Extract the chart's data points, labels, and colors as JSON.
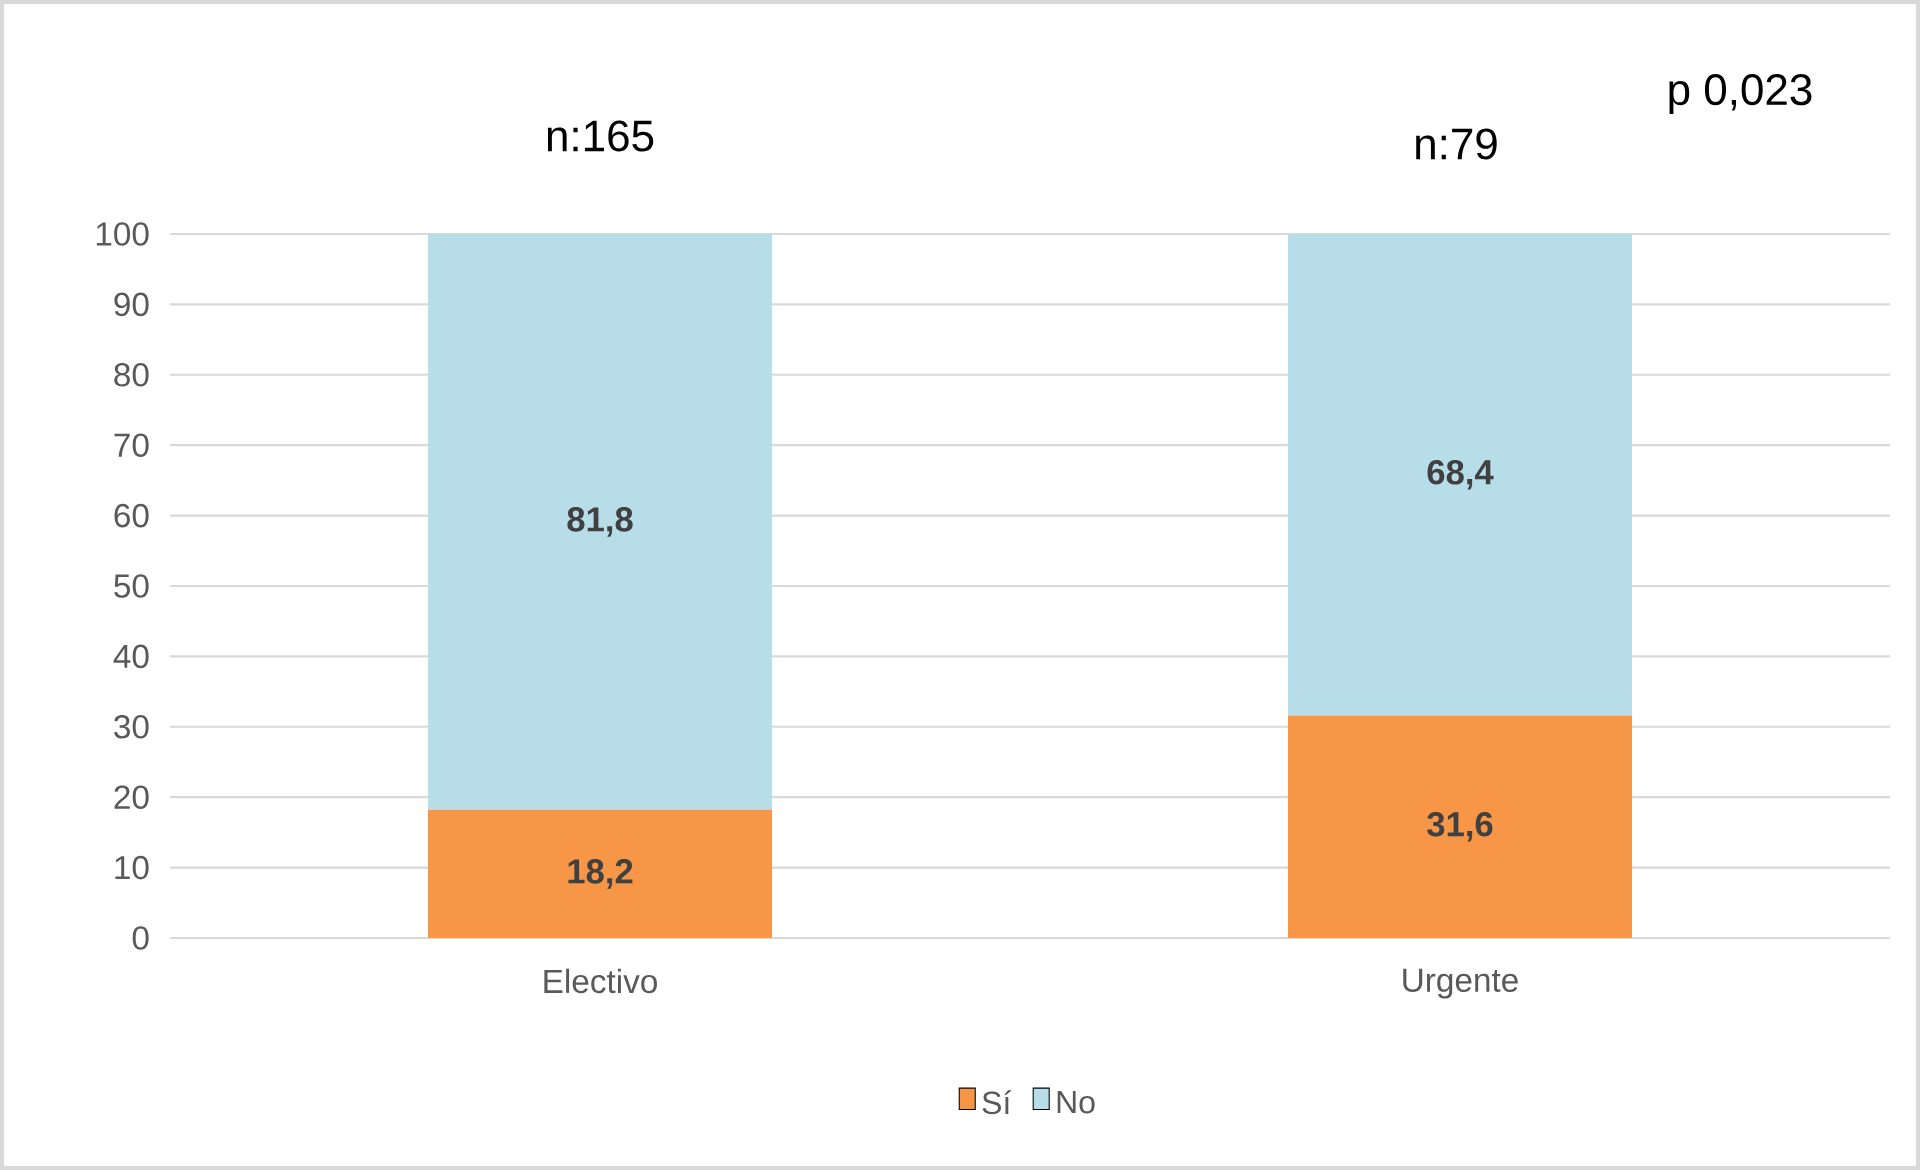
{
  "chart_data": {
    "type": "bar",
    "stacked": true,
    "categories": [
      "Electivo",
      "Urgente"
    ],
    "series": [
      {
        "name": "Sí",
        "color": "#f79646",
        "values": [
          18.2,
          31.6
        ],
        "value_labels": [
          "18,2",
          "31,6"
        ]
      },
      {
        "name": "No",
        "color": "#b7dde8",
        "values": [
          81.8,
          68.4
        ],
        "value_labels": [
          "81,8",
          "68,4"
        ]
      }
    ],
    "ylim": [
      0,
      100
    ],
    "yticks": [
      0,
      10,
      20,
      30,
      40,
      50,
      60,
      70,
      80,
      90,
      100
    ],
    "grid": "y",
    "legend": "bottom",
    "annotations": [
      "n:165",
      "n:79",
      "p 0,023"
    ]
  }
}
